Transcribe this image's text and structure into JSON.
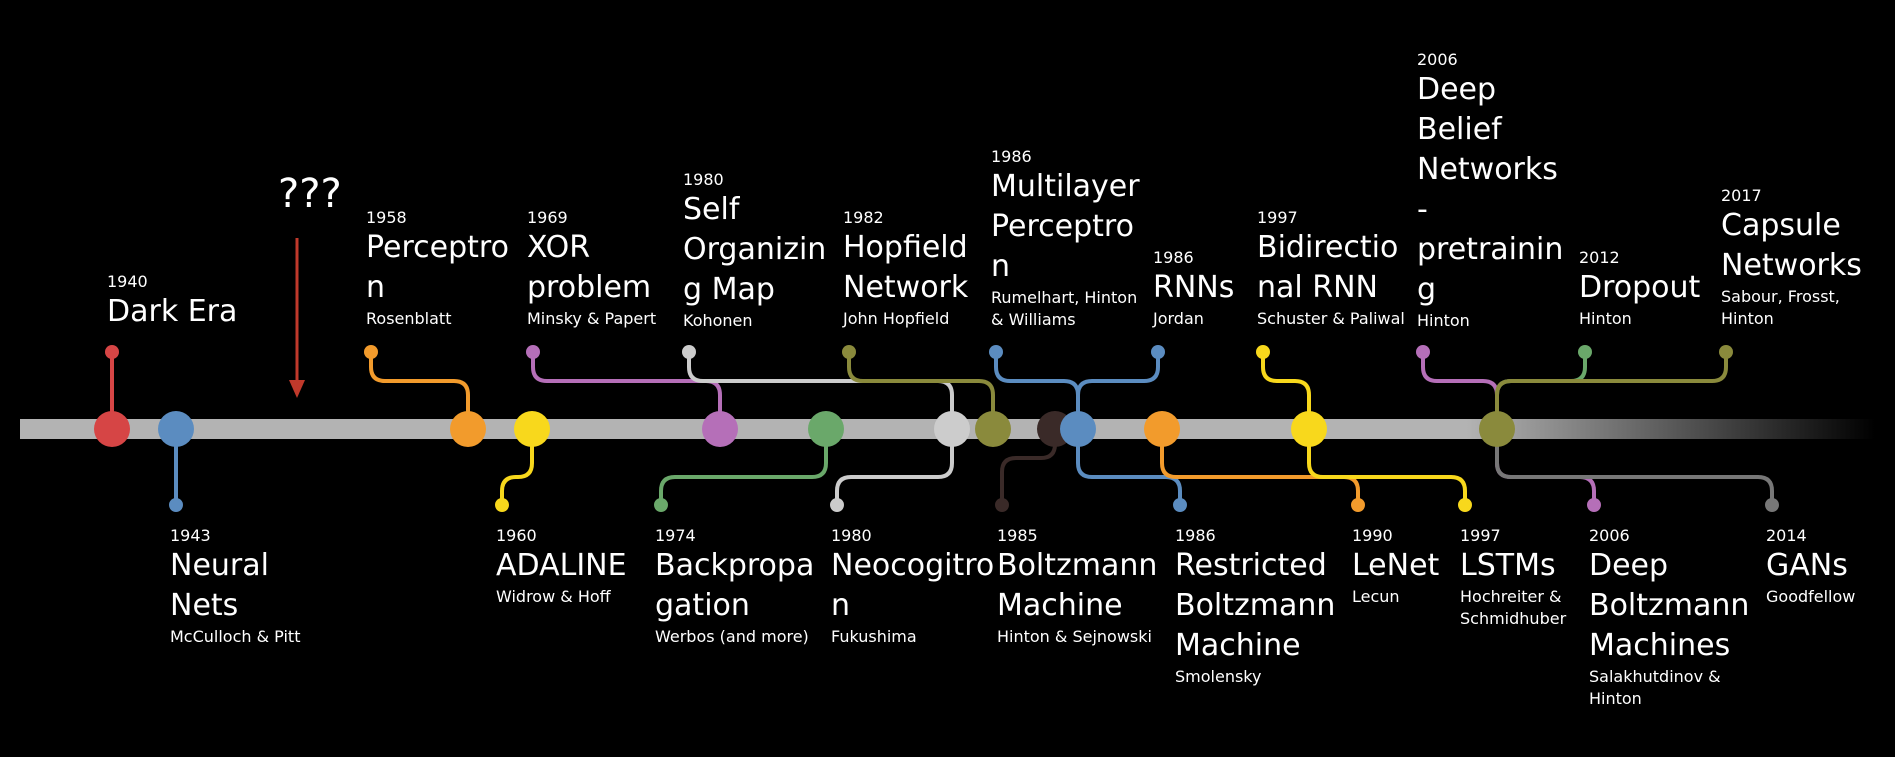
{
  "marker_label": "???",
  "events_above": [
    {
      "id": "dark-era",
      "year": "1940",
      "title_lines": [
        "Dark Era"
      ],
      "authors_lines": [],
      "color": "#d64545"
    },
    {
      "id": "perceptron",
      "year": "1958",
      "title_lines": [
        "Perceptro",
        "n"
      ],
      "authors_lines": [
        "Rosenblatt"
      ],
      "color": "#f29b2c"
    },
    {
      "id": "xor-problem",
      "year": "1969",
      "title_lines": [
        "XOR",
        "problem"
      ],
      "authors_lines": [
        "Minsky & Papert"
      ],
      "color": "#b56fb8"
    },
    {
      "id": "self-organizing-map",
      "year": "1980",
      "title_lines": [
        "Self",
        "Organizin",
        "g Map"
      ],
      "authors_lines": [
        "Kohonen"
      ],
      "color": "#cccccc"
    },
    {
      "id": "hopfield-network",
      "year": "1982",
      "title_lines": [
        "Hopfield",
        "Network"
      ],
      "authors_lines": [
        "John Hopfield"
      ],
      "color": "#8a8a3c"
    },
    {
      "id": "multilayer-perceptron",
      "year": "1986",
      "title_lines": [
        "Multilayer",
        "Perceptro",
        "n"
      ],
      "authors_lines": [
        "Rumelhart, Hinton",
        "& Williams"
      ],
      "color": "#5b8cc0"
    },
    {
      "id": "rnns",
      "year": "1986",
      "title_lines": [
        "RNNs"
      ],
      "authors_lines": [
        "Jordan"
      ],
      "color": "#5b8cc0"
    },
    {
      "id": "bidirectional-rnn",
      "year": "1997",
      "title_lines": [
        "Bidirectio",
        "nal RNN"
      ],
      "authors_lines": [
        "Schuster & Paliwal"
      ],
      "color": "#f8d81c"
    },
    {
      "id": "deep-belief-networks",
      "year": "2006",
      "title_lines": [
        "Deep",
        "Belief",
        "Networks",
        "-",
        "pretrainin",
        "g"
      ],
      "authors_lines": [
        "Hinton"
      ],
      "color": "#b56fb8"
    },
    {
      "id": "dropout",
      "year": "2012",
      "title_lines": [
        "Dropout"
      ],
      "authors_lines": [
        "Hinton"
      ],
      "color": "#6aa86a"
    },
    {
      "id": "capsule-networks",
      "year": "2017",
      "title_lines": [
        "Capsule",
        "Networks"
      ],
      "authors_lines": [
        "Sabour, Frosst,",
        "Hinton"
      ],
      "color": "#8a8a3c"
    }
  ],
  "events_below": [
    {
      "id": "neural-nets",
      "year": "1943",
      "title_lines": [
        "Neural",
        "Nets"
      ],
      "authors_lines": [
        "McCulloch & Pitt"
      ],
      "color": "#5b8cc0"
    },
    {
      "id": "adaline",
      "year": "1960",
      "title_lines": [
        "ADALINE"
      ],
      "authors_lines": [
        "Widrow & Hoff"
      ],
      "color": "#f8d81c"
    },
    {
      "id": "backpropagation",
      "year": "1974",
      "title_lines": [
        "Backpropa",
        "gation"
      ],
      "authors_lines": [
        "Werbos (and more)"
      ],
      "color": "#6aa86a"
    },
    {
      "id": "neocognitron",
      "year": "1980",
      "title_lines": [
        "Neocogitro",
        "n"
      ],
      "authors_lines": [
        "Fukushima"
      ],
      "color": "#cccccc"
    },
    {
      "id": "boltzmann-machine",
      "year": "1985",
      "title_lines": [
        "Boltzmann",
        "Machine"
      ],
      "authors_lines": [
        "Hinton & Sejnowski"
      ],
      "color": "#3a2a28"
    },
    {
      "id": "restricted-boltzmann-machine",
      "year": "1986",
      "title_lines": [
        "Restricted",
        "Boltzmann",
        "Machine"
      ],
      "authors_lines": [
        "Smolensky"
      ],
      "color": "#5b8cc0"
    },
    {
      "id": "lenet",
      "year": "1990",
      "title_lines": [
        "LeNet"
      ],
      "authors_lines": [
        "Lecun"
      ],
      "color": "#f29b2c"
    },
    {
      "id": "lstms",
      "year": "1997",
      "title_lines": [
        "LSTMs"
      ],
      "authors_lines": [
        "Hochreiter &",
        "Schmidhuber"
      ],
      "color": "#f8d81c"
    },
    {
      "id": "deep-boltzmann-machines",
      "year": "2006",
      "title_lines": [
        "Deep",
        "Boltzmann",
        "Machines"
      ],
      "authors_lines": [
        "Salakhutdinov &",
        "Hinton"
      ],
      "color": "#b56fb8"
    },
    {
      "id": "gans",
      "year": "2014",
      "title_lines": [
        "GANs"
      ],
      "authors_lines": [
        "Goodfellow"
      ],
      "color": "#777777"
    }
  ],
  "timeline_nodes": [
    {
      "color": "#d64545"
    },
    {
      "color": "#5b8cc0"
    },
    {
      "color": "#f29b2c"
    },
    {
      "color": "#f8d81c"
    },
    {
      "color": "#b56fb8"
    },
    {
      "color": "#6aa86a"
    },
    {
      "color": "#cccccc"
    },
    {
      "color": "#8a8a3c"
    },
    {
      "color": "#3a2a28"
    },
    {
      "color": "#5b8cc0"
    },
    {
      "color": "#f29b2c"
    },
    {
      "color": "#f8d81c"
    },
    {
      "color": "#8a8a3c"
    }
  ],
  "colors": {
    "background": "#000000",
    "timeline": "#b3b3b3",
    "marker_arrow": "#c0392b",
    "text": "#ffffff"
  }
}
